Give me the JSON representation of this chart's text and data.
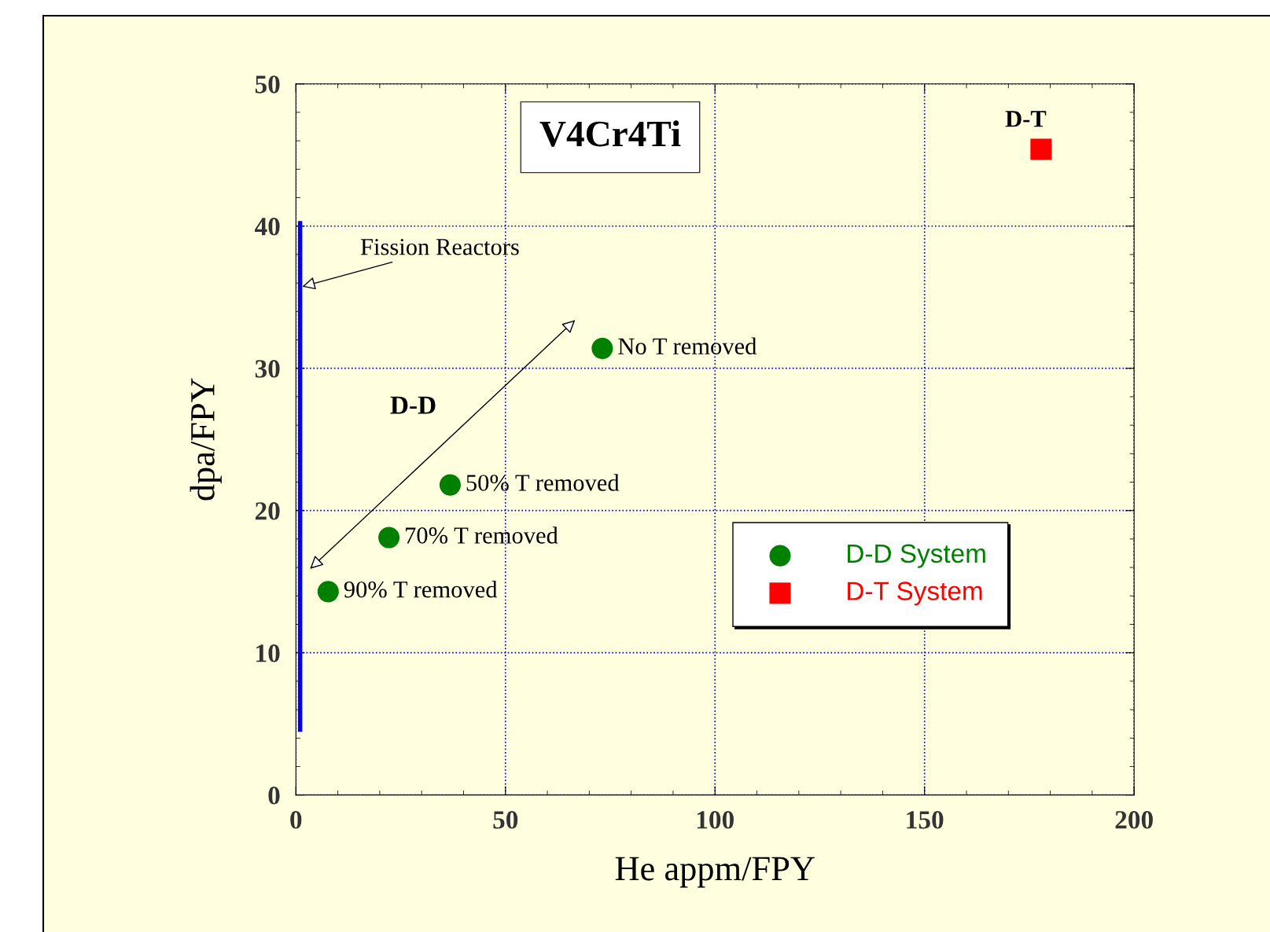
{
  "chart_data": {
    "type": "scatter",
    "title": "V4Cr4Ti",
    "xlabel": "He appm/FPY",
    "ylabel": "dpa/FPY",
    "xlim": [
      0,
      200
    ],
    "ylim": [
      0,
      50
    ],
    "xticks": [
      0,
      50,
      100,
      150,
      200
    ],
    "yticks": [
      0,
      10,
      20,
      30,
      40,
      50
    ],
    "grid": true,
    "legend": "right",
    "series": [
      {
        "name": "D-D System",
        "color": "#008000",
        "marker": "circle",
        "x": [
          73.1,
          36.8,
          22.2,
          7.7
        ],
        "values": [
          31.4,
          21.8,
          18.1,
          14.3
        ]
      },
      {
        "name": "D-T System",
        "color": "#ff0000",
        "marker": "square",
        "x": [
          177.8
        ],
        "values": [
          45.4
        ]
      },
      {
        "type": "line",
        "color": "#0000ff",
        "marker": "none",
        "x": [
          1,
          1
        ],
        "values": [
          4.6,
          40.2
        ]
      }
    ],
    "annotations": [
      {
        "text": "No T removed",
        "x": 73.1,
        "y": 31.4
      },
      {
        "text": "50% T removed",
        "x": 36.8,
        "y": 21.8
      },
      {
        "text": "70% T removed",
        "x": 22.2,
        "y": 18.1
      },
      {
        "text": "90% T removed",
        "x": 7.7,
        "y": 14.3
      },
      {
        "text": "D-T",
        "x": 177.8,
        "y": 45.4
      },
      {
        "text": "Fission Reactors",
        "x": 1,
        "y": 35.7
      },
      "D-D"
    ]
  }
}
